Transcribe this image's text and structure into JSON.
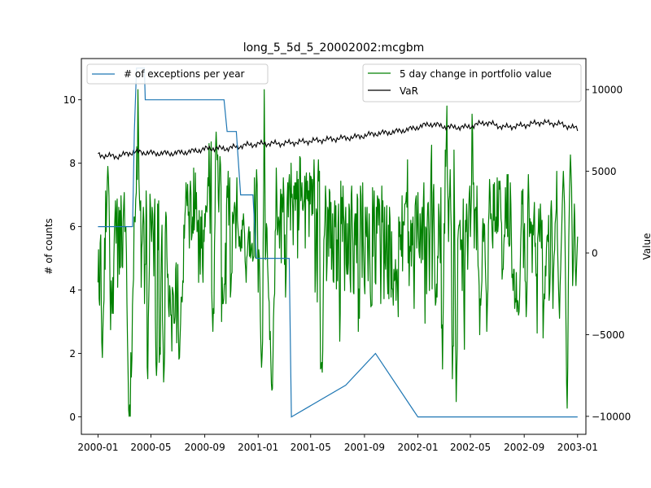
{
  "chart_data": {
    "type": "line",
    "title": "long_5_5d_5_20002002:mcgbm",
    "xlabel": "",
    "ylabel_left": "# of counts",
    "ylabel_right": "Value",
    "grid": false,
    "x_range": [
      "1999-11-24",
      "2003-01-20"
    ],
    "x_ticks": [
      "2000-01",
      "2000-05",
      "2000-09",
      "2001-01",
      "2001-05",
      "2001-09",
      "2002-01",
      "2002-05",
      "2002-09",
      "2003-01"
    ],
    "ylim_left": [
      -0.55,
      11.3
    ],
    "yticks_left": [
      0,
      2,
      4,
      6,
      8,
      10
    ],
    "ylim_right": [
      -11100,
      11900
    ],
    "yticks_right": [
      -10000,
      -5000,
      0,
      5000,
      10000
    ],
    "yticks_right_labels": [
      "−10000",
      "−5000",
      "0",
      "5000",
      "10000"
    ],
    "legend_left": {
      "position": "upper-left",
      "entries": [
        {
          "name": "# of exceptions per year",
          "color": "#1f77b4"
        }
      ]
    },
    "legend_right": {
      "position": "upper-right",
      "entries": [
        {
          "name": "5 day change in portfolio value",
          "color": "#008000"
        },
        {
          "name": "VaR",
          "color": "#000000"
        }
      ]
    },
    "series": [
      {
        "name": "# of exceptions per year",
        "axis": "left",
        "color": "#1f77b4",
        "step": true,
        "x": [
          "2000-01-01",
          "2000-03-20",
          "2000-03-24",
          "2000-03-29",
          "2000-04-03",
          "2000-04-16",
          "2000-04-18",
          "2000-10-15",
          "2000-10-22",
          "2000-11-12",
          "2000-11-22",
          "2000-12-20",
          "2000-12-28",
          "2001-03-13",
          "2001-03-16",
          "2001-03-18",
          "2001-07-20",
          "2001-09-26",
          "2002-01-01",
          "2003-01-01"
        ],
        "values": [
          6,
          6,
          9,
          11,
          11,
          11,
          10,
          10,
          9,
          9,
          7,
          7,
          5,
          5,
          2,
          0,
          1,
          2,
          0,
          0
        ]
      },
      {
        "name": "5 day change in portfolio value",
        "axis": "right",
        "color": "#008000",
        "x_start": "2000-01-01",
        "x_end": "2003-01-01",
        "values": [
          -1800,
          200,
          -2800,
          -3200,
          600,
          1100,
          -3400,
          -5500,
          -6400,
          -4600,
          -3400,
          -2900,
          900,
          -1000,
          3800,
          1300,
          2900,
          4500,
          5300,
          4600,
          3500,
          1400,
          -2100,
          -4700,
          -1700,
          -2600,
          -3700,
          -1500,
          -3700,
          -400,
          1300,
          2300,
          3200,
          600,
          2400,
          3300,
          -2100,
          1300,
          2800,
          -1300,
          2600,
          -900,
          3500,
          2200,
          -800,
          -900,
          1900,
          2900,
          3700,
          1300,
          1600,
          1600,
          -100,
          -3100,
          -5400,
          -7300,
          -9600,
          -10000,
          -9300,
          -10000,
          -6100,
          -7600,
          -6500,
          -3200,
          -2200,
          -1600,
          2200,
          2200,
          1900,
          3300,
          3700,
          6500,
          4500,
          10000,
          7400,
          4400,
          3200,
          2600,
          3200,
          -2100,
          300,
          800,
          1800,
          2800,
          1800,
          -3100,
          -700,
          -700,
          3800,
          2300,
          -7000,
          -7700,
          -4000,
          -2600,
          -700,
          3600,
          3000,
          1600,
          700,
          2800,
          2400,
          1200,
          -1400,
          2200,
          3300,
          -4100,
          -6800,
          -7500,
          -6600,
          3000,
          200,
          3200,
          -6700,
          -5800,
          -6200,
          -1700,
          400,
          1700,
          -4100,
          -5400,
          -7900,
          -7200,
          -6100,
          1200,
          2500,
          2200,
          -200,
          -1500,
          -1300,
          -3300,
          -3900,
          -2000,
          -2300,
          -3800,
          -3800,
          -6000,
          -2100,
          -2300,
          -2600,
          -4300,
          -4300,
          -3900,
          -1000,
          -600,
          -5500,
          -3000,
          -700,
          -4500,
          -6500,
          -6400,
          -5300,
          -4300,
          -2700,
          -2700,
          -3000,
          -1700,
          -1800,
          1700,
          900,
          2300,
          2900,
          4300,
          3500,
          2900,
          4200,
          2300,
          2500,
          300,
          3500,
          4400,
          3600,
          800,
          1100,
          2200,
          1200,
          5200,
          1400,
          2300,
          4900,
          2700,
          3700,
          1300,
          1600,
          2000,
          -1800,
          2600,
          500,
          -1300,
          2200,
          300,
          2600,
          -800,
          -1800,
          1400,
          700,
          2400,
          1600,
          2900,
          2800,
          2500,
          3100,
          4600,
          4100,
          6700,
          3900,
          1200,
          5000,
          6800,
          -2400,
          -3700,
          -4800,
          -3400,
          -3700,
          600,
          1900,
          6400,
          7400,
          6500,
          5700,
          6000,
          3300,
          2500,
          4500,
          5900,
          5400,
          4000,
          -4200,
          -1500,
          -3100,
          -3100,
          -2800,
          -1900,
          -1900,
          600,
          -3100,
          2900,
          4100,
          3400,
          5000,
          1700,
          3700,
          4600,
          -2700,
          -2300,
          -1300,
          -1200,
          2500,
          2200,
          1800,
          2800,
          3100,
          2700,
          300,
          2700,
          4600,
          2000,
          1500,
          1100,
          400,
          1000,
          300,
          100,
          1400,
          300,
          2000,
          1700,
          2400,
          1700,
          1200,
          -500,
          -1000,
          -1800,
          -300,
          -100,
          600,
          1200,
          1600,
          -200,
          1300,
          -300,
          0,
          500,
          600,
          -500,
          -300,
          -200,
          4600,
          2200,
          -300,
          3700,
          5100,
          4200,
          400,
          -2400,
          200,
          -200,
          -1600,
          -4200,
          -5900,
          -7000,
          -6400,
          -5400,
          700,
          4400,
          10000,
          5500,
          -400,
          100,
          1800,
          1500,
          -700,
          -1500,
          -2700,
          -3000,
          -5300,
          -4800,
          -6600,
          -8000,
          -8400,
          -8300,
          -6300,
          -4000,
          -2800,
          -2500,
          1300,
          1500,
          5200,
          3500,
          1100,
          1400,
          2200,
          1900,
          300,
          2500,
          3900,
          -600,
          3600,
          3200,
          2500,
          4600,
          3400,
          -700,
          1100,
          -2700,
          -1400,
          700,
          3300,
          4300,
          2200,
          4300,
          4800,
          3800,
          1400,
          5500,
          3400,
          3600,
          2700,
          500,
          4100,
          3300,
          4300,
          2600,
          4300,
          3300,
          5000,
          -300,
          4500,
          1400,
          2400,
          5900,
          5800,
          3200,
          3600,
          4300,
          2700,
          2600,
          3000,
          3300,
          4700,
          300,
          4300,
          4900,
          3300,
          4400,
          3200,
          3800,
          1000,
          4900,
          3000,
          4700,
          4600,
          2300,
          4500,
          2400,
          4000,
          5700,
          4300,
          -2400,
          -1000,
          2700,
          2400,
          -3000,
          4600,
          5700,
          4400,
          5000,
          -2800,
          -7100,
          -7000,
          -6700,
          -7300,
          -6000,
          -2100,
          800,
          1100,
          2000,
          4100,
          3100,
          -1700,
          -500,
          2800,
          2600,
          -200,
          3900,
          3700,
          300,
          3100,
          -1000,
          500,
          2400,
          -1700,
          -1800,
          1900,
          3200,
          1600,
          2900,
          -2200,
          800,
          -1700,
          1700,
          3000,
          -1500,
          -5400,
          -3700,
          4400,
          1800,
          3400,
          700,
          4100,
          2300,
          1700,
          -2300,
          1900,
          2800,
          -700,
          -1300,
          1800,
          -1300,
          -600,
          3000,
          2600,
          -1500,
          -2400,
          3500,
          4100,
          2100,
          600,
          -2400,
          -2500,
          1800,
          2400,
          500,
          2400,
          -600,
          3600,
          3300,
          -4800,
          -2200,
          -4000,
          -400,
          4100,
          3500,
          1500,
          -1500,
          4300,
          700,
          -500,
          -1900,
          -2500,
          2800,
          1500,
          1000,
          2800,
          300,
          -1700,
          1300,
          2400,
          -100,
          -2400,
          -3300,
          -3200,
          -3200,
          4000,
          -200,
          2500,
          3800,
          1100,
          -1800,
          -1900,
          2800,
          1200,
          3500,
          3300,
          1700,
          3300,
          2900,
          500,
          -3100,
          -700,
          4100,
          1900,
          3200,
          1000,
          -2800,
          2800,
          -400,
          -1000,
          900,
          2900,
          -1400,
          -2500,
          1700,
          -2800,
          2800,
          2100,
          -700,
          -2700,
          1300,
          -2200,
          -2200,
          -3200,
          -1000,
          -1700,
          -1600,
          -400,
          -2900,
          -1200,
          -1000,
          -2400,
          -3900,
          2200,
          1000,
          1900,
          200,
          1100,
          -200,
          3500,
          -1100,
          1900,
          1900,
          1700,
          3000,
          3000,
          3200,
          3700,
          2800,
          5700,
          -600,
          1300,
          -2000,
          400,
          100,
          2000,
          -800,
          1800,
          500,
          2200,
          -800,
          -3400,
          -400,
          2900,
          3300,
          3500,
          300,
          1800,
          3700,
          1300,
          100,
          -300,
          2400,
          1400,
          -600,
          2400,
          2800,
          -400,
          3200,
          4300,
          300,
          -4300,
          1600,
          1500,
          -2500,
          1800,
          3000,
          3100,
          900,
          -2300,
          800,
          2900,
          5400,
          6600,
          -2200,
          1100,
          3700,
          4200,
          900,
          -2000,
          -3200,
          -3000,
          -1900,
          -2700,
          -200,
          -300,
          3000,
          2200,
          600,
          -600,
          4000,
          -4600,
          -4400,
          -7100,
          -4000,
          -1900,
          1800,
          1200,
          6300,
          5300,
          7100,
          9000,
          4600,
          3300,
          700,
          3200,
          3500,
          5100,
          2700,
          1600,
          -3700,
          -7700,
          -5700,
          -5700,
          6300,
          2300,
          -2000,
          -5800,
          -9100,
          -7200,
          -5800,
          800,
          1400,
          1700,
          1700,
          2000,
          200,
          800,
          800,
          -2300,
          800,
          3300,
          -3000,
          -5900,
          -800,
          2000,
          1300,
          3000,
          2000,
          -1000,
          1000,
          2900,
          3600,
          4100,
          1000,
          2300,
          3500,
          8500,
          7300,
          4200,
          4300,
          300,
          2600,
          2700,
          2800,
          200,
          4100,
          1600,
          -800,
          -1100,
          -2000,
          -5000,
          -2800,
          -3200,
          -2400,
          -1700,
          1300,
          2100,
          700,
          1800,
          1700,
          -300,
          -1600,
          -2500,
          -4800,
          -3300,
          -2200,
          1700,
          2500,
          4500,
          3700,
          2100,
          2400,
          1900,
          800,
          300,
          4200,
          2000,
          4300,
          1300,
          1400,
          2200,
          1200,
          4600,
          1300,
          1700,
          4400,
          3900,
          4400,
          3700,
          2100,
          1800,
          -1600,
          -1000,
          -1000,
          500,
          1100,
          1000,
          4000,
          2300,
          1500,
          4800,
          1000,
          4800,
          600,
          400,
          500,
          4300,
          3000,
          800,
          -1500,
          -1300,
          -2300,
          -1000,
          -1000,
          -3400,
          -2800,
          -3000,
          -1200,
          -3600,
          -2900,
          -3000,
          -3800,
          -3600,
          -2600,
          -1200,
          700,
          1800,
          3800,
          3000,
          3900,
          -900,
          1000,
          1800,
          -1700,
          -1800,
          -3900,
          -3000,
          -1000,
          3000,
          4800,
          3300,
          1000,
          2100,
          1200,
          1900,
          1700,
          -1200,
          1700,
          1100,
          2200,
          3100,
          400,
          600,
          -1400,
          -1300,
          -4900,
          900,
          1300,
          2700,
          1200,
          700,
          3000,
          1900,
          300,
          2000,
          -1600,
          -5200,
          -3500,
          -2500,
          -2800,
          -800,
          -1400,
          300,
          1000,
          1100,
          700,
          2300,
          -2900,
          -2400,
          -1200,
          2600,
          3200,
          2100,
          -1200,
          -3400,
          -1300,
          -200,
          200,
          1800,
          2200,
          2700,
          5000,
          1000,
          -500,
          -2000,
          -3000,
          -4000,
          -2000,
          -1000,
          300,
          1500,
          3000,
          4000,
          5000,
          4000,
          3000,
          1000,
          -2000,
          -5000,
          -8000,
          -9500,
          -7000,
          -2000,
          1000,
          3000,
          5000,
          6000,
          5000,
          4000,
          1000,
          -2000,
          -1000,
          1000,
          3000,
          2000,
          -1000,
          -2000,
          -1000,
          0,
          1000
        ]
      },
      {
        "name": "VaR",
        "axis": "right",
        "color": "#000000",
        "x_start": "2000-01-01",
        "x_end": "2003-01-01",
        "values": [
          6000,
          5900,
          6200,
          6100,
          6100,
          6200,
          6400,
          6400,
          6600,
          6700,
          6700,
          6800,
          6900,
          7000,
          7100,
          7300,
          7400,
          7600,
          7900,
          7700,
          7700,
          8000,
          7700,
          7800,
          8000,
          7900,
          7600
        ]
      }
    ]
  }
}
